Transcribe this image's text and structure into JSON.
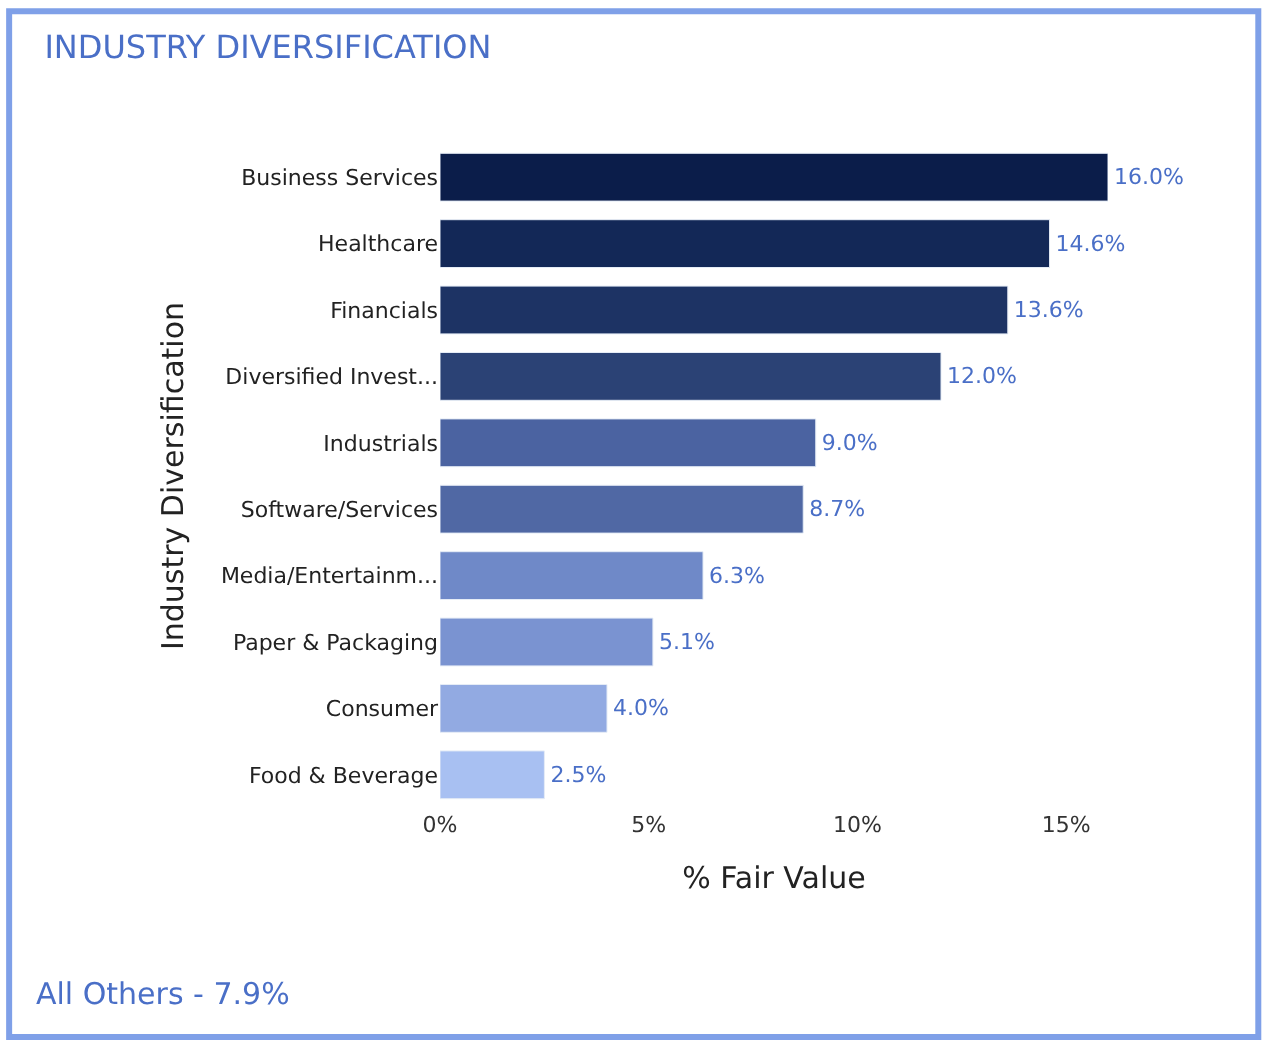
{
  "chart_data": {
    "type": "bar",
    "orientation": "horizontal",
    "title": "INDUSTRY DIVERSIFICATION",
    "xlabel": "% Fair Value",
    "ylabel": "Industry Diversification",
    "categories": [
      "Business Services",
      "Healthcare",
      "Financials",
      "Diversified Invest...",
      "Industrials",
      "Software/Services",
      "Media/Entertainm...",
      "Paper & Packaging",
      "Consumer",
      "Food & Beverage"
    ],
    "values": [
      16.0,
      14.6,
      13.6,
      12.0,
      9.0,
      8.7,
      6.3,
      5.1,
      4.0,
      2.5
    ],
    "value_labels": [
      "16.0%",
      "14.6%",
      "13.6%",
      "12.0%",
      "9.0%",
      "8.7%",
      "6.3%",
      "5.1%",
      "4.0%",
      "2.5%"
    ],
    "colors": [
      "#0b1d4a",
      "#132857",
      "#1d3364",
      "#2b4275",
      "#4b63a1",
      "#5068a4",
      "#6f89c8",
      "#7a93d1",
      "#92aae2",
      "#a8c0f2"
    ],
    "xlim": [
      0,
      16
    ],
    "xticks": [
      {
        "value": 0,
        "label": "0%"
      },
      {
        "value": 5,
        "label": "5%"
      },
      {
        "value": 10,
        "label": "10%"
      },
      {
        "value": 15,
        "label": "15%"
      }
    ],
    "legend": false,
    "annotations": [
      "All Others - 7.9%"
    ]
  }
}
